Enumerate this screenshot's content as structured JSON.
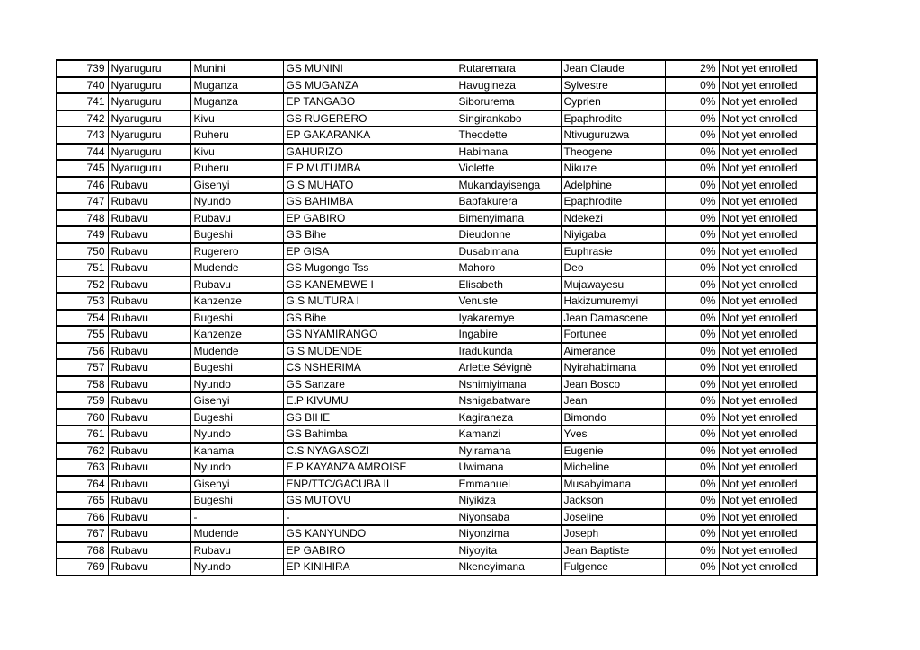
{
  "colors": {
    "background": "#ffffff",
    "border": "#000000",
    "text": "#000000"
  },
  "table": {
    "columns": [
      {
        "key": "row-number",
        "align": "right"
      },
      {
        "key": "district",
        "align": "left"
      },
      {
        "key": "sector",
        "align": "left"
      },
      {
        "key": "school",
        "align": "left"
      },
      {
        "key": "name-1",
        "align": "left"
      },
      {
        "key": "name-2",
        "align": "left"
      },
      {
        "key": "progress-percent",
        "align": "right"
      },
      {
        "key": "enrollment-status",
        "align": "left"
      }
    ],
    "rows": [
      [
        "739",
        "Nyaruguru",
        "Munini",
        "GS MUNINI",
        "Rutaremara",
        "Jean Claude",
        "2%",
        "Not yet enrolled"
      ],
      [
        "740",
        "Nyaruguru",
        "Muganza",
        "GS MUGANZA",
        "Havugineza",
        "Sylvestre",
        "0%",
        "Not yet enrolled"
      ],
      [
        "741",
        "Nyaruguru",
        "Muganza",
        "EP TANGABO",
        "Siborurema",
        "Cyprien",
        "0%",
        "Not yet enrolled"
      ],
      [
        "742",
        "Nyaruguru",
        "Kivu",
        "GS RUGERERO",
        "Singirankabo",
        "Epaphrodite",
        "0%",
        "Not yet enrolled"
      ],
      [
        "743",
        "Nyaruguru",
        "Ruheru",
        "EP GAKARANKA",
        "Theodette",
        "Ntivuguruzwa",
        "0%",
        "Not yet enrolled"
      ],
      [
        "744",
        "Nyaruguru",
        "Kivu",
        "GAHURIZO",
        "Habimana",
        "Theogene",
        "0%",
        "Not yet enrolled"
      ],
      [
        "745",
        "Nyaruguru",
        "Ruheru",
        "E P MUTUMBA",
        "Violette",
        "Nikuze",
        "0%",
        "Not yet enrolled"
      ],
      [
        "746",
        "Rubavu",
        "Gisenyi",
        "G.S MUHATO",
        "Mukandayisenga",
        "Adelphine",
        "0%",
        "Not yet enrolled"
      ],
      [
        "747",
        "Rubavu",
        "Nyundo",
        "GS BAHIMBA",
        "Bapfakurera",
        "Epaphrodite",
        "0%",
        "Not yet enrolled"
      ],
      [
        "748",
        "Rubavu",
        "Rubavu",
        "EP GABIRO",
        "Bimenyimana",
        "Ndekezi",
        "0%",
        "Not yet enrolled"
      ],
      [
        "749",
        "Rubavu",
        "Bugeshi",
        "GS Bihe",
        "Dieudonne",
        "Niyigaba",
        "0%",
        "Not yet enrolled"
      ],
      [
        "750",
        "Rubavu",
        "Rugerero",
        "EP GISA",
        "Dusabimana",
        "Euphrasie",
        "0%",
        "Not yet enrolled"
      ],
      [
        "751",
        "Rubavu",
        "Mudende",
        "GS Mugongo Tss",
        "Mahoro",
        "Deo",
        "0%",
        "Not yet enrolled"
      ],
      [
        "752",
        "Rubavu",
        "Rubavu",
        "GS KANEMBWE I",
        "Elisabeth",
        "Mujawayesu",
        "0%",
        "Not yet enrolled"
      ],
      [
        "753",
        "Rubavu",
        "Kanzenze",
        "G.S MUTURA I",
        "Venuste",
        "Hakizumuremyi",
        "0%",
        "Not yet enrolled"
      ],
      [
        "754",
        "Rubavu",
        "Bugeshi",
        "GS Bihe",
        "Iyakaremye",
        "Jean Damascene",
        "0%",
        "Not yet enrolled"
      ],
      [
        "755",
        "Rubavu",
        "Kanzenze",
        "GS NYAMIRANGO",
        "Ingabire",
        "Fortunee",
        "0%",
        "Not yet enrolled"
      ],
      [
        "756",
        "Rubavu",
        "Mudende",
        "G.S MUDENDE",
        "Iradukunda",
        "Aimerance",
        "0%",
        "Not yet enrolled"
      ],
      [
        "757",
        "Rubavu",
        "Bugeshi",
        "CS NSHERIMA",
        "Arlette Sévignè",
        "Nyirahabimana",
        "0%",
        "Not yet enrolled"
      ],
      [
        "758",
        "Rubavu",
        "Nyundo",
        "GS Sanzare",
        "Nshimiyimana",
        "Jean Bosco",
        "0%",
        "Not yet enrolled"
      ],
      [
        "759",
        "Rubavu",
        "Gisenyi",
        "E.P KIVUMU",
        "Nshigabatware",
        "Jean",
        "0%",
        "Not yet enrolled"
      ],
      [
        "760",
        "Rubavu",
        "Bugeshi",
        "GS BIHE",
        "Kagiraneza",
        "Bimondo",
        "0%",
        "Not yet enrolled"
      ],
      [
        "761",
        "Rubavu",
        "Nyundo",
        "GS Bahimba",
        "Kamanzi",
        "Yves",
        "0%",
        "Not yet enrolled"
      ],
      [
        "762",
        "Rubavu",
        "Kanama",
        "C.S NYAGASOZI",
        "Nyiramana",
        "Eugenie",
        "0%",
        "Not yet enrolled"
      ],
      [
        "763",
        "Rubavu",
        "Nyundo",
        "E.P KAYANZA AMROISE",
        "Uwimana",
        "Micheline",
        "0%",
        "Not yet enrolled"
      ],
      [
        "764",
        "Rubavu",
        "Gisenyi",
        "ENP/TTC/GACUBA II",
        "Emmanuel",
        "Musabyimana",
        "0%",
        "Not yet enrolled"
      ],
      [
        "765",
        "Rubavu",
        "Bugeshi",
        "GS MUTOVU",
        "Niyikiza",
        "Jackson",
        "0%",
        "Not yet enrolled"
      ],
      [
        "766",
        "Rubavu",
        "-",
        "-",
        "Niyonsaba",
        "Joseline",
        "0%",
        "Not yet enrolled"
      ],
      [
        "767",
        "Rubavu",
        "Mudende",
        "GS KANYUNDO",
        "Niyonzima",
        "Joseph",
        "0%",
        "Not yet enrolled"
      ],
      [
        "768",
        "Rubavu",
        "Rubavu",
        "EP GABIRO",
        "Niyoyita",
        "Jean Baptiste",
        "0%",
        "Not yet enrolled"
      ],
      [
        "769",
        "Rubavu",
        "Nyundo",
        "EP KINIHIRA",
        "Nkeneyimana",
        "Fulgence",
        "0%",
        "Not yet enrolled"
      ]
    ]
  }
}
